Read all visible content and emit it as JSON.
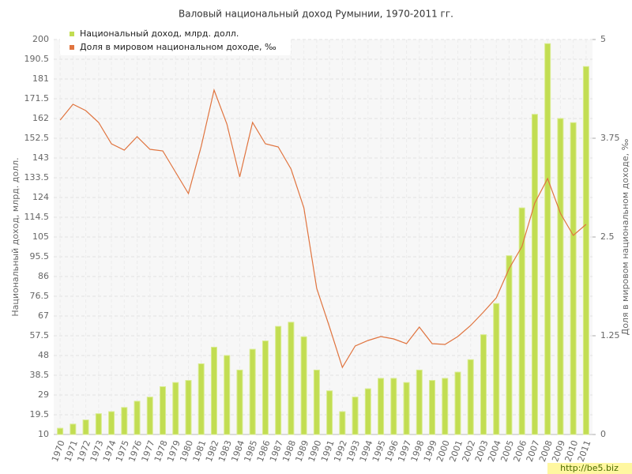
{
  "chart_data": {
    "type": "bar-line",
    "title": "Валовый национальный доход Румынии, 1970-2011 гг.",
    "y_label": "Национальный доход, млрд. долл.",
    "y2_label": "Доля в мировом национальном доходе, ‰",
    "categories": [
      "1970",
      "1971",
      "1972",
      "1973",
      "1974",
      "1975",
      "1976",
      "1977",
      "1978",
      "1979",
      "1980",
      "1981",
      "1982",
      "1983",
      "1984",
      "1985",
      "1986",
      "1987",
      "1988",
      "1989",
      "1990",
      "1991",
      "1992",
      "1993",
      "1994",
      "1995",
      "1996",
      "1997",
      "1998",
      "1999",
      "2000",
      "2001",
      "2002",
      "2003",
      "2004",
      "2005",
      "2006",
      "2007",
      "2008",
      "2009",
      "2010",
      "2011"
    ],
    "series": [
      {
        "name": "Национальный доход, млрд. долл.",
        "type": "bar",
        "color": "#c2dd52",
        "values": [
          13,
          15,
          17,
          20,
          21,
          23,
          26,
          28,
          33,
          35,
          36,
          44,
          52,
          48,
          41,
          51,
          55,
          62,
          64,
          57,
          41,
          31,
          21,
          28,
          32,
          37,
          37,
          35,
          41,
          36,
          37,
          40,
          46,
          58,
          73,
          96,
          119,
          164,
          198,
          162,
          160,
          187
        ]
      },
      {
        "name": "Доля в мировом национальном доходе, ‰",
        "type": "line",
        "axis": "y2",
        "color": "#e0743f",
        "values": [
          3.98,
          4.18,
          4.1,
          3.95,
          3.68,
          3.6,
          3.77,
          3.61,
          3.59,
          3.32,
          3.05,
          3.65,
          4.36,
          3.93,
          3.26,
          3.95,
          3.68,
          3.64,
          3.36,
          2.87,
          1.85,
          1.36,
          0.85,
          1.12,
          1.19,
          1.24,
          1.21,
          1.15,
          1.36,
          1.15,
          1.14,
          1.24,
          1.38,
          1.55,
          1.73,
          2.1,
          2.38,
          2.93,
          3.24,
          2.8,
          2.52,
          2.66
        ]
      }
    ],
    "ylim": [
      10,
      200
    ],
    "yticks": [
      10,
      19.5,
      29,
      38.5,
      48,
      57.5,
      67,
      76.5,
      86,
      95.5,
      105,
      114.5,
      124,
      133.5,
      143,
      152.5,
      162,
      171.5,
      181,
      190.5,
      200
    ],
    "y2lim": [
      0,
      5
    ],
    "y2ticks": [
      0,
      1.25,
      2.5,
      3.75,
      5
    ],
    "grid": true,
    "legend": "top-left"
  },
  "watermark": "http://be5.biz"
}
